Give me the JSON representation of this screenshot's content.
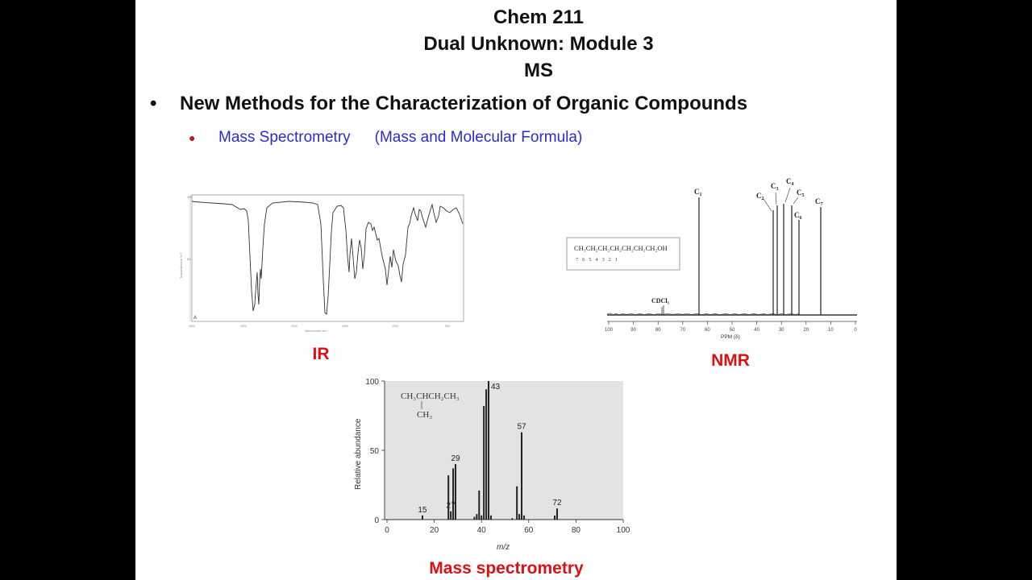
{
  "slide": {
    "title_lines": [
      "Chem 211",
      "Dual Unknown: Module 3",
      "MS"
    ],
    "bullet_main": "New Methods for the Characterization of Organic Compounds",
    "sub_bullet": {
      "label": "Mass Spectrometry",
      "detail": "(Mass and Molecular Formula)"
    },
    "captions": {
      "ir": "IR",
      "nmr": "NMR",
      "ms": "Mass spectrometry"
    }
  },
  "nmr": {
    "formula": "CH₃CH₂CH₂CH₂CH₂CH₂CH₂OH",
    "numbering": "7   6   5   4   3   2   1",
    "solvent_label": "CDCl₃",
    "peak_labels": [
      "C1",
      "C2",
      "C3",
      "C4",
      "C5",
      "C6",
      "C7"
    ],
    "axis_label": "PPM (δ)",
    "ticks": [
      "100",
      "90",
      "80",
      "70",
      "60",
      "50",
      "40",
      "30",
      "20",
      "10",
      "0"
    ]
  },
  "chart_data": {
    "type": "bar",
    "title": "",
    "xlabel": "m/z",
    "ylabel": "Relative abundance",
    "xlim": [
      0,
      100
    ],
    "ylim": [
      0,
      100
    ],
    "xticks": [
      0,
      20,
      40,
      60,
      80,
      100
    ],
    "yticks": [
      0,
      50,
      100
    ],
    "structure": {
      "line1": "CH₃CHCH₂CH₃",
      "line2": "CH₃"
    },
    "peaks": [
      {
        "x": 15,
        "y": 3,
        "label": "15"
      },
      {
        "x": 26,
        "y": 32
      },
      {
        "x": 27,
        "y": 6,
        "label": "27"
      },
      {
        "x": 28,
        "y": 37
      },
      {
        "x": 29,
        "y": 40,
        "label": "29"
      },
      {
        "x": 37,
        "y": 2
      },
      {
        "x": 38,
        "y": 4
      },
      {
        "x": 39,
        "y": 21
      },
      {
        "x": 40,
        "y": 3
      },
      {
        "x": 41,
        "y": 82
      },
      {
        "x": 42,
        "y": 94
      },
      {
        "x": 43,
        "y": 100,
        "label": "43"
      },
      {
        "x": 44,
        "y": 3
      },
      {
        "x": 53,
        "y": 1
      },
      {
        "x": 55,
        "y": 24
      },
      {
        "x": 56,
        "y": 4
      },
      {
        "x": 57,
        "y": 63,
        "label": "57"
      },
      {
        "x": 58,
        "y": 3
      },
      {
        "x": 71,
        "y": 3
      },
      {
        "x": 72,
        "y": 8,
        "label": "72"
      }
    ]
  }
}
